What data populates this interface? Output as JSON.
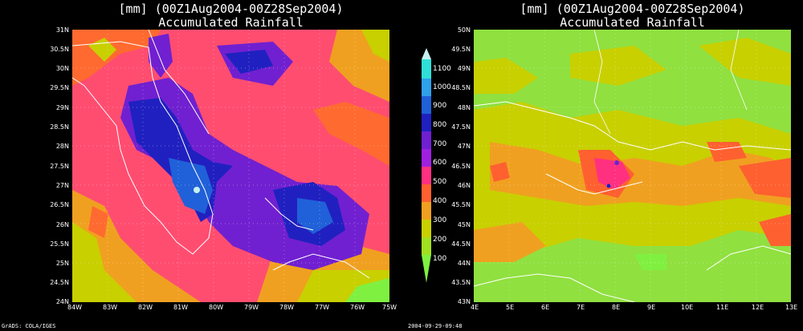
{
  "panels": [
    {
      "title_line1": "[mm] (00Z1Aug2004-00Z28Sep2004)",
      "title_line2": "Accumulated Rainfall",
      "y_ticks": [
        "31N",
        "30.5N",
        "30N",
        "29.5N",
        "29N",
        "28.5N",
        "28N",
        "27.5N",
        "27N",
        "26.5N",
        "26N",
        "25.5N",
        "25N",
        "24.5N",
        "24N"
      ],
      "x_ticks": [
        "84W",
        "83W",
        "82W",
        "81W",
        "80W",
        "79W",
        "78W",
        "77W",
        "76W",
        "75W"
      ]
    },
    {
      "title_line1": "[mm] (00Z1Aug2004-00Z28Sep2004)",
      "title_line2": "Accumulated Rainfall",
      "y_ticks": [
        "50N",
        "49.5N",
        "49N",
        "48.5N",
        "48N",
        "47.5N",
        "47N",
        "46.5N",
        "46N",
        "45.5N",
        "45N",
        "44.5N",
        "44N",
        "43.5N",
        "43N"
      ],
      "x_ticks": [
        "4E",
        "5E",
        "6E",
        "7E",
        "8E",
        "9E",
        "10E",
        "11E",
        "12E",
        "13E"
      ]
    }
  ],
  "colorbar": {
    "labels": [
      "1100",
      "1000",
      "900",
      "800",
      "700",
      "600",
      "500",
      "400",
      "300",
      "200",
      "100"
    ],
    "colors": [
      "#c8f0f0",
      "#30e0d8",
      "#30a0e8",
      "#2060d8",
      "#2020c0",
      "#7020d0",
      "#a020e0",
      "#ff3080",
      "#ff6030",
      "#f0a020",
      "#c8d000",
      "#80f040"
    ]
  },
  "footer_left": "GrADS: COLA/IGES",
  "footer_center": "2004-09-29-09:48"
}
